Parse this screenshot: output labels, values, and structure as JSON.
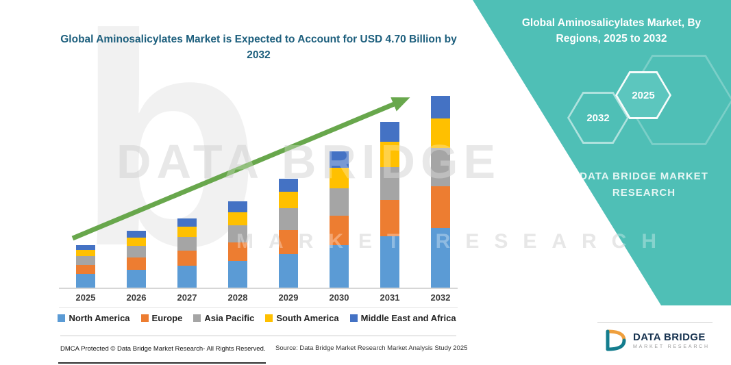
{
  "chart": {
    "title": "Global Aminosalicylates Market is Expected to Account for USD 4.70 Billion by 2032"
  },
  "chart_data": {
    "type": "bar",
    "stacked": true,
    "title": "Global Aminosalicylates Market is Expected to Account for USD 4.70 Billion by 2032",
    "unit": "USD Billion",
    "categories": [
      "2025",
      "2026",
      "2027",
      "2028",
      "2029",
      "2030",
      "2031",
      "2032"
    ],
    "series": [
      {
        "name": "North America",
        "color": "#5B9BD5",
        "values": [
          0.33,
          0.43,
          0.53,
          0.65,
          0.83,
          1.04,
          1.26,
          1.46
        ]
      },
      {
        "name": "Europe",
        "color": "#ED7D31",
        "values": [
          0.23,
          0.31,
          0.37,
          0.46,
          0.59,
          0.73,
          0.89,
          1.03
        ]
      },
      {
        "name": "Asia Pacific",
        "color": "#A5A5A5",
        "values": [
          0.21,
          0.28,
          0.34,
          0.42,
          0.53,
          0.67,
          0.81,
          0.94
        ]
      },
      {
        "name": "South America",
        "color": "#FFC000",
        "values": [
          0.16,
          0.21,
          0.26,
          0.32,
          0.4,
          0.5,
          0.61,
          0.71
        ]
      },
      {
        "name": "Middle East and Africa",
        "color": "#4472C4",
        "values": [
          0.12,
          0.17,
          0.2,
          0.26,
          0.32,
          0.4,
          0.49,
          0.56
        ]
      }
    ],
    "totals": [
      1.05,
      1.4,
      1.7,
      2.11,
      2.67,
      3.34,
      4.06,
      4.7
    ],
    "ylim": [
      0,
      4.7
    ],
    "grid": false,
    "legend_position": "bottom",
    "trend_arrow": true
  },
  "right_panel": {
    "title": "Global Aminosalicylates Market, By Regions, 2025 to 2032",
    "hexagons": [
      {
        "label": "2032"
      },
      {
        "label": "2025"
      }
    ],
    "brand_text": "DATA BRIDGE MARKET RESEARCH",
    "bg_color": "#4fbfb6"
  },
  "watermark": {
    "letter": "b",
    "line1": "DATA BRIDGE",
    "line2": "MARKET RESEARCH"
  },
  "footer": {
    "dmca": "DMCA Protected © Data Bridge Market Research-  All Rights Reserved.",
    "source": "Source: Data Bridge Market Research  Market Analysis Study 2025"
  },
  "logo": {
    "name": "DATA BRIDGE",
    "tagline": "MARKET RESEARCH"
  },
  "colors": {
    "panel_teal": "#4fbfb6",
    "title_text": "#1d5f7d",
    "arrow_green": "#68a74c"
  }
}
